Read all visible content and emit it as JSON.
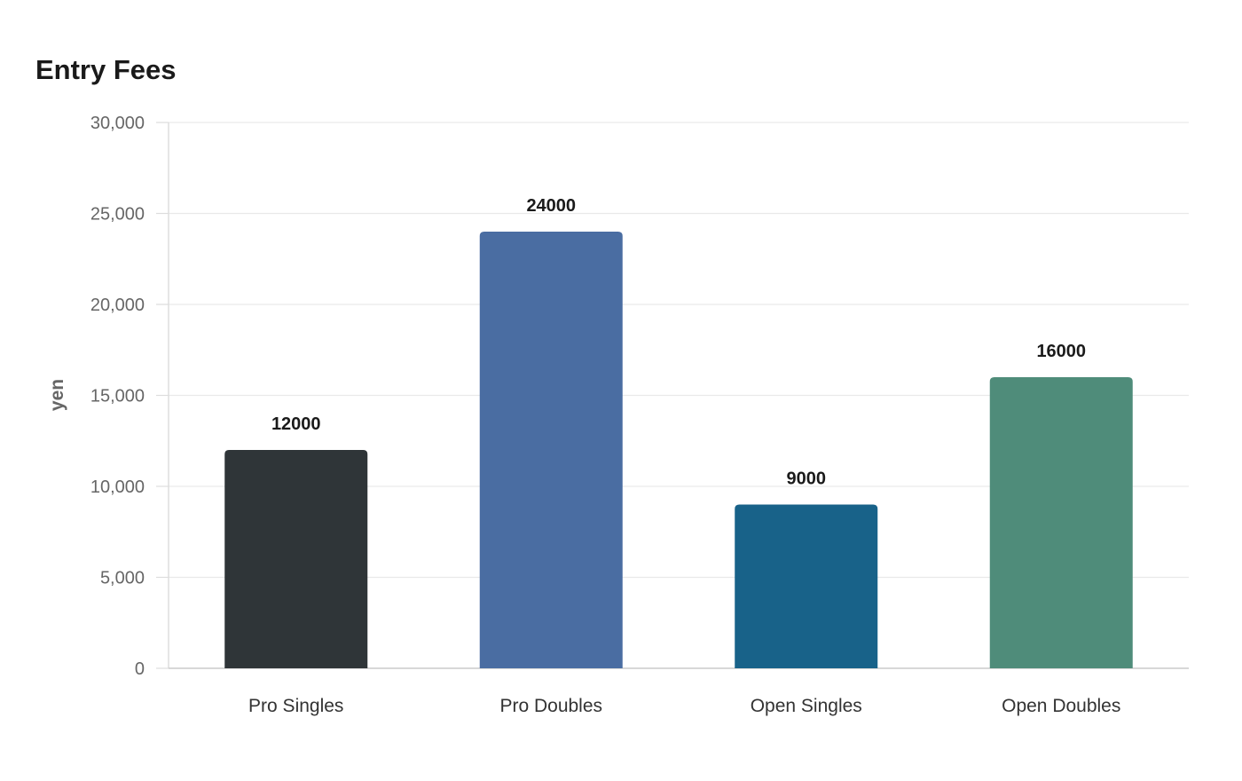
{
  "chart_data": {
    "type": "bar",
    "title": "Entry Fees",
    "xlabel": "",
    "ylabel": "yen",
    "categories": [
      "Pro Singles",
      "Pro Doubles",
      "Open Singles",
      "Open Doubles"
    ],
    "values": [
      12000,
      24000,
      9000,
      16000
    ],
    "value_labels": [
      "12000",
      "24000",
      "9000",
      "16000"
    ],
    "colors": [
      "#2f3538",
      "#4a6da2",
      "#186289",
      "#4f8c7a"
    ],
    "ylim": [
      0,
      30000
    ],
    "yticks": [
      0,
      5000,
      10000,
      15000,
      20000,
      25000,
      30000
    ],
    "ytick_labels": [
      "0",
      "5,000",
      "10,000",
      "15,000",
      "20,000",
      "25,000",
      "30,000"
    ],
    "grid": true,
    "legend": "none"
  }
}
